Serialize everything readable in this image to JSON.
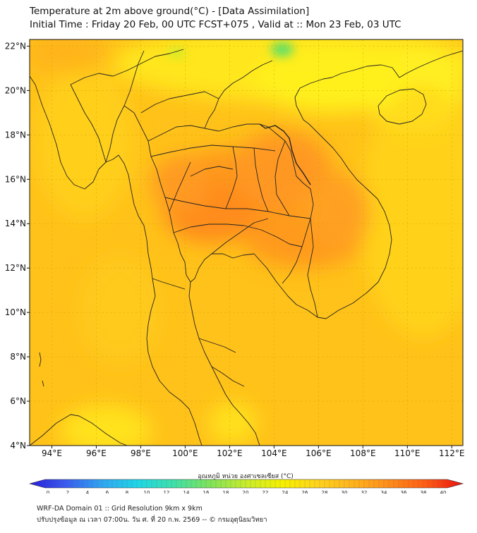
{
  "title": "Temperature at 2m above ground(°C) - [Data Assimilation]",
  "subtitle": "Initial Time : Friday 20 Feb, 00 UTC FCST+075 , Valid at :: Mon 23 Feb, 03 UTC",
  "axes": {
    "lon_ticks": [
      "94°E",
      "96°E",
      "98°E",
      "100°E",
      "102°E",
      "104°E",
      "106°E",
      "108°E",
      "110°E",
      "112°E"
    ],
    "lon_values": [
      94,
      96,
      98,
      100,
      102,
      104,
      106,
      108,
      110,
      112
    ],
    "lat_ticks": [
      "22°N",
      "20°N",
      "18°N",
      "16°N",
      "14°N",
      "12°N",
      "10°N",
      "8°N",
      "6°N",
      "4°N"
    ],
    "lat_values": [
      22,
      20,
      18,
      16,
      14,
      12,
      10,
      8,
      6,
      4
    ],
    "lon_range": [
      93,
      112.5
    ],
    "lat_range": [
      4,
      22.3
    ]
  },
  "colorbar": {
    "title": "อุณหภูมิ หน่วย องศาเซลเซียส (°C)",
    "min": 0,
    "max": 40,
    "ticks": [
      "0",
      "2",
      "4",
      "6",
      "8",
      "10",
      "12",
      "14",
      "16",
      "18",
      "20",
      "22",
      "24",
      "26",
      "28",
      "30",
      "32",
      "34",
      "36",
      "38",
      "40"
    ],
    "colors": [
      "#2a1ed8",
      "#3a5cf0",
      "#2fa6f2",
      "#1fd6e6",
      "#3ee0a8",
      "#7fe35a",
      "#c8ec2a",
      "#f6f000",
      "#ffd21c",
      "#ffb21c",
      "#ff8a1a",
      "#ff5a14",
      "#e81212"
    ]
  },
  "footer": {
    "line1": "WRF-DA Domain 01 :: Grid Resolution 9km x 9km",
    "line2": "ปรับปรุงข้อมูล ณ เวลา 07:00น. วัน ศ. ที่ 20 ก.พ. 2569 -- © กรมอุตุนิยมวิทยา"
  },
  "colors": {
    "land_boundary": "#222222",
    "grid": "#c8a000",
    "field_base": "#ffc21a",
    "hot": "#ff8a1a",
    "cool": "#ffe21a",
    "coolest": "#58e06a"
  }
}
